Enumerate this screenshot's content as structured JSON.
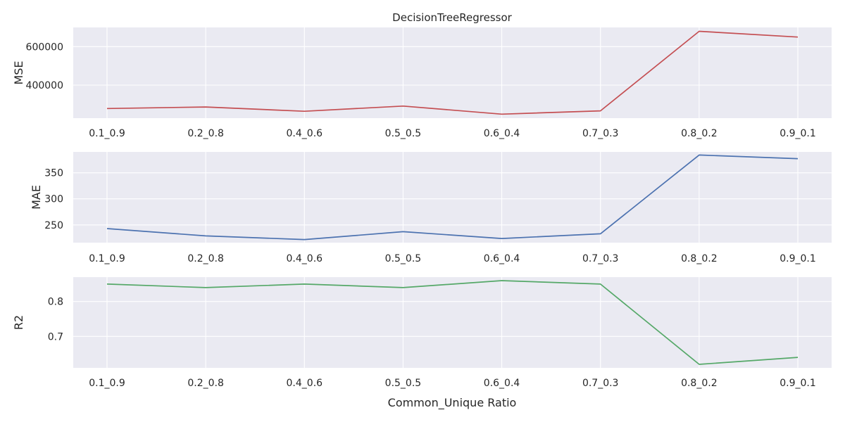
{
  "chart_data": {
    "type": "line",
    "title": "DecisionTreeRegressor",
    "xlabel": "Common_Unique Ratio",
    "categories": [
      "0.1_0.9",
      "0.2_0.8",
      "0.4_0.6",
      "0.5_0.5",
      "0.6_0.4",
      "0.7_0.3",
      "0.8_0.2",
      "0.9_0.1"
    ],
    "subplots": [
      {
        "ylabel": "MSE",
        "color": "#c44e52",
        "ylim": [
          228000,
          700000
        ],
        "yticks": [
          400000,
          600000
        ],
        "ytick_labels": [
          "400000",
          "600000"
        ],
        "values": [
          278000,
          286000,
          264000,
          291000,
          249000,
          266000,
          680000,
          650000
        ]
      },
      {
        "ylabel": "MAE",
        "color": "#4c72b0",
        "ylim": [
          216,
          390
        ],
        "yticks": [
          250,
          300,
          350
        ],
        "ytick_labels": [
          "250",
          "300",
          "350"
        ],
        "values": [
          243,
          229,
          222,
          237,
          224,
          233,
          384,
          377
        ]
      },
      {
        "ylabel": "R2",
        "color": "#55a868",
        "ylim": [
          0.61,
          0.87
        ],
        "yticks": [
          0.7,
          0.8
        ],
        "ytick_labels": [
          "0.7",
          "0.8"
        ],
        "values": [
          0.85,
          0.84,
          0.85,
          0.84,
          0.86,
          0.85,
          0.62,
          0.64
        ]
      }
    ],
    "grid": true
  }
}
